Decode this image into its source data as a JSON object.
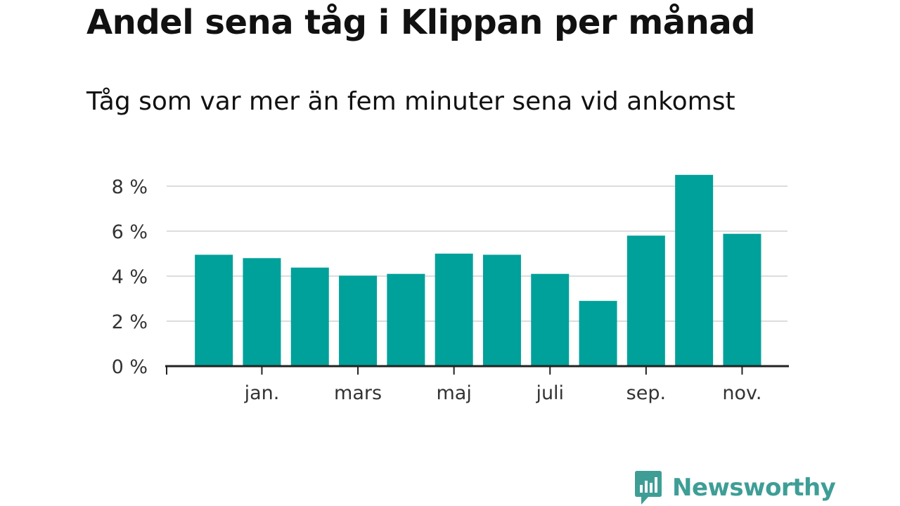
{
  "title": "Andel sena tåg i Klippan per månad",
  "subtitle": "Tåg som var mer än fem minuter sena vid ankomst",
  "brand": {
    "name": "Newsworthy",
    "color": "#3e9e96",
    "icon": "newsworthy-logo-icon"
  },
  "chart_data": {
    "type": "bar",
    "title": "Andel sena tåg i Klippan per månad",
    "subtitle": "Tåg som var mer än fem minuter sena vid ankomst",
    "xlabel": "",
    "ylabel": "",
    "y_tick_values": [
      0,
      2,
      4,
      6,
      8
    ],
    "y_tick_labels": [
      "0 %",
      "2 %",
      "4 %",
      "6 %",
      "8 %"
    ],
    "ylim": [
      0,
      8.9
    ],
    "x_tick_labels": [
      {
        "label": "jan.",
        "index": 1
      },
      {
        "label": "mars",
        "index": 3
      },
      {
        "label": "maj",
        "index": 5
      },
      {
        "label": "juli",
        "index": 7
      },
      {
        "label": "sep.",
        "index": 9
      },
      {
        "label": "nov.",
        "index": 11
      }
    ],
    "values": [
      4.95,
      4.8,
      4.38,
      4.02,
      4.1,
      5.0,
      4.95,
      4.1,
      2.9,
      5.8,
      8.5,
      5.88
    ],
    "bar_color": "#00a19a",
    "grid": true,
    "gridline_color": "#dcdcdc",
    "axis_color": "#222222",
    "legend": "none"
  }
}
